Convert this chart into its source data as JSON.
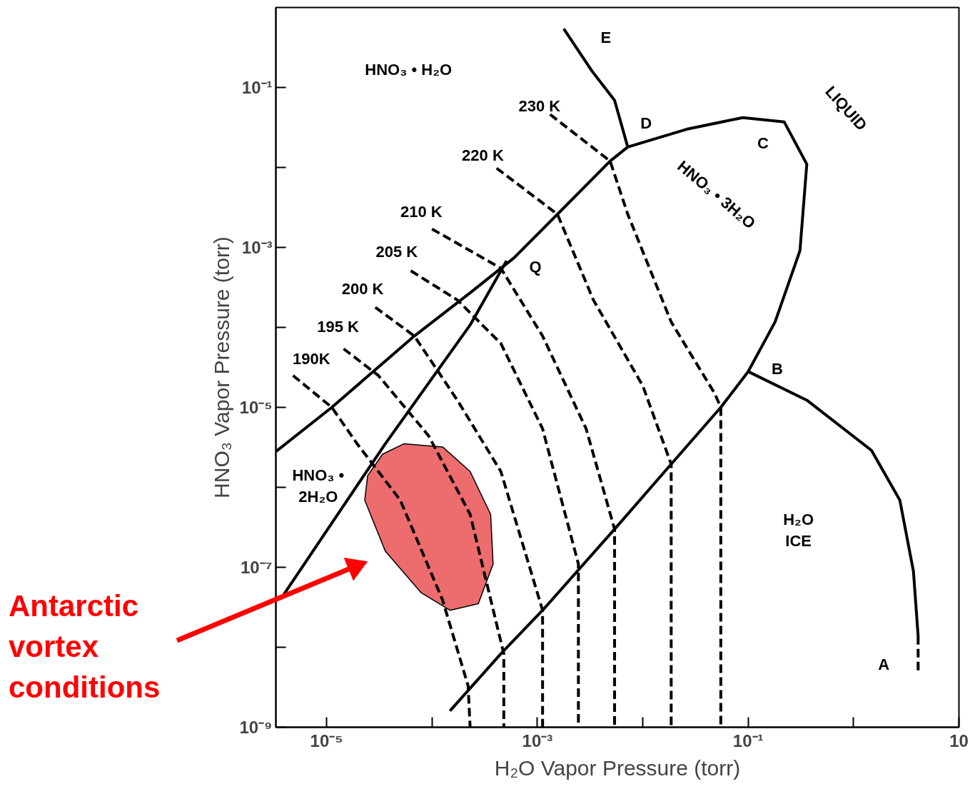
{
  "chart_data": {
    "type": "line",
    "xlabel": "H₂O Vapor Pressure (torr)",
    "ylabel": "HNO₃ Vapor Pressure (torr)",
    "log": "xy",
    "grid": false,
    "marker": "none",
    "xlim": [
      3.3e-06,
      10
    ],
    "ylim": [
      1e-09,
      1
    ],
    "xticks": [
      {
        "value": 1e-05,
        "label": "10⁻⁵"
      },
      {
        "value": 0.0001,
        "label": null
      },
      {
        "value": 0.001,
        "label": "10⁻³"
      },
      {
        "value": 0.01,
        "label": null
      },
      {
        "value": 0.1,
        "label": "10⁻¹"
      },
      {
        "value": 1,
        "label": null
      },
      10
    ],
    "yticks": [
      {
        "value": 1e-09,
        "label": "10⁻⁹"
      },
      {
        "value": 1e-08,
        "label": null
      },
      {
        "value": 1e-07,
        "label": "10⁻⁷"
      },
      {
        "value": 1e-06,
        "label": null
      },
      {
        "value": 1e-05,
        "label": "10⁻⁵"
      },
      {
        "value": 0.0001,
        "label": null
      },
      {
        "value": 0.001,
        "label": "10⁻³"
      },
      {
        "value": 0.01,
        "label": null
      },
      {
        "value": 0.1,
        "label": "10⁻¹"
      }
    ],
    "series": [
      {
        "type": "area",
        "color": "#e8474a",
        "x": [
          5.4e-05,
          0.000126,
          0.00023,
          0.00036,
          0.00038,
          0.000275,
          0.000148,
          7.9e-05,
          3.6e-05,
          2.3e-05,
          2.45e-05,
          3.4e-05
        ],
        "values": [
          3.5e-06,
          3.2e-06,
          1.58e-06,
          4.6e-07,
          1.1e-07,
          3.5e-08,
          2.9e-08,
          4.8e-08,
          1.6e-07,
          6.9e-07,
          1.4e-06,
          2.6e-06
        ]
      },
      {
        "color": "#000000",
        "line_style": "solid",
        "x": [
          3.3e-06,
          1.12e-05,
          6.8e-05,
          0.00023,
          0.0006,
          0.00155,
          0.0049,
          0.0072,
          0.026,
          0.089,
          0.22,
          0.36,
          0.31,
          0.18,
          0.1,
          0.36,
          1.48,
          2.75,
          3.7,
          4.1
        ],
        "values": [
          2.8e-06,
          1e-05,
          7.8e-05,
          0.00027,
          0.00074,
          0.0026,
          0.012,
          0.018,
          0.03,
          0.042,
          0.037,
          0.011,
          0.00091,
          0.000117,
          2.8e-05,
          1.23e-05,
          2.9e-06,
          6.9e-07,
          8.9e-08,
          1.38e-08
        ]
      },
      {
        "color": "#000000",
        "line_style": "solid",
        "x": [
          3.8e-06,
          3.6e-05,
          0.00023,
          0.00051
        ],
        "values": [
          4.3e-08,
          3.5e-06,
          0.000107,
          0.00068
        ]
      },
      {
        "color": "#000000",
        "line_style": "solid",
        "x": [
          0.1,
          0.055,
          0.0186,
          0.0054,
          0.00112,
          0.00045,
          0.000148
        ],
        "values": [
          2.8e-05,
          1e-05,
          1.95e-06,
          3e-07,
          2.9e-08,
          8.3e-09,
          1.6e-09
        ]
      },
      {
        "color": "#000000",
        "line_style": "dashed",
        "x": [
          4.1,
          4.1
        ],
        "values": [
          1.38e-08,
          5e-09
        ]
      },
      {
        "color": "#000000",
        "line_style": "solid",
        "x": [
          0.00178,
          0.0033,
          0.0054,
          0.0072
        ],
        "values": [
          0.54,
          0.16,
          0.069,
          0.018
        ]
      },
      {
        "color": "#000000",
        "line_style": "dashed",
        "x": [
          0.00132,
          0.0049,
          0.0072,
          0.0186,
          0.048,
          0.055,
          0.055
        ],
        "values": [
          0.046,
          0.012,
          0.0026,
          0.000117,
          1.5e-05,
          1e-05,
          1e-09
        ]
      },
      {
        "color": "#000000",
        "line_style": "dashed",
        "x": [
          0.00041,
          0.00155,
          0.0034,
          0.01,
          0.0186,
          0.0186
        ],
        "values": [
          0.0098,
          0.0026,
          0.00022,
          1.86e-05,
          1.95e-06,
          1e-09
        ]
      },
      {
        "color": "#000000",
        "line_style": "dashed",
        "x": [
          0.0001,
          0.00045,
          0.00112,
          0.0029,
          0.0054,
          0.0054
        ],
        "values": [
          0.0017,
          0.00055,
          7.8e-05,
          5.4e-06,
          3e-07,
          1e-09
        ]
      },
      {
        "color": "#000000",
        "line_style": "dashed",
        "x": [
          6.3e-05,
          0.000174,
          0.00045,
          0.00112,
          0.00245,
          0.00245
        ],
        "values": [
          0.00051,
          0.00022,
          6.3e-05,
          5.4e-06,
          1.1e-07,
          1e-09
        ]
      },
      {
        "color": "#000000",
        "line_style": "dashed",
        "x": [
          2.9e-05,
          6.8e-05,
          0.000174,
          0.00045,
          0.00112,
          0.00112
        ],
        "values": [
          0.000178,
          7.8e-05,
          1.23e-05,
          1.58e-06,
          2.9e-08,
          1e-09
        ]
      },
      {
        "color": "#000000",
        "line_style": "dashed",
        "x": [
          1.45e-05,
          3.1e-05,
          9.3e-05,
          0.00023,
          0.00048,
          0.00048
        ],
        "values": [
          5.4e-05,
          2.5e-05,
          4.4e-06,
          4.6e-07,
          8.3e-09,
          1e-09
        ]
      },
      {
        "color": "#000000",
        "line_style": "dashed",
        "x": [
          4.8e-06,
          1.12e-05,
          1.95e-05,
          5e-05,
          0.000126,
          0.00022,
          0.00023
        ],
        "values": [
          2.5e-05,
          1e-05,
          3.5e-06,
          6.9e-07,
          3.9e-08,
          3.3e-09,
          1e-09
        ]
      }
    ],
    "annotations": [
      "E",
      "D",
      "C",
      "B",
      "A",
      "Q",
      "LIQUID",
      "HNO₃ • H₂O",
      "HNO₃ • 3H₂O",
      "HNO₃ •\n2H₂O",
      "H₂O\nICE",
      "230 K",
      "220 K",
      "210 K",
      "205 K",
      "200 K",
      "195 K",
      "190K",
      "Antarctic\nvortex\nconditions"
    ]
  }
}
